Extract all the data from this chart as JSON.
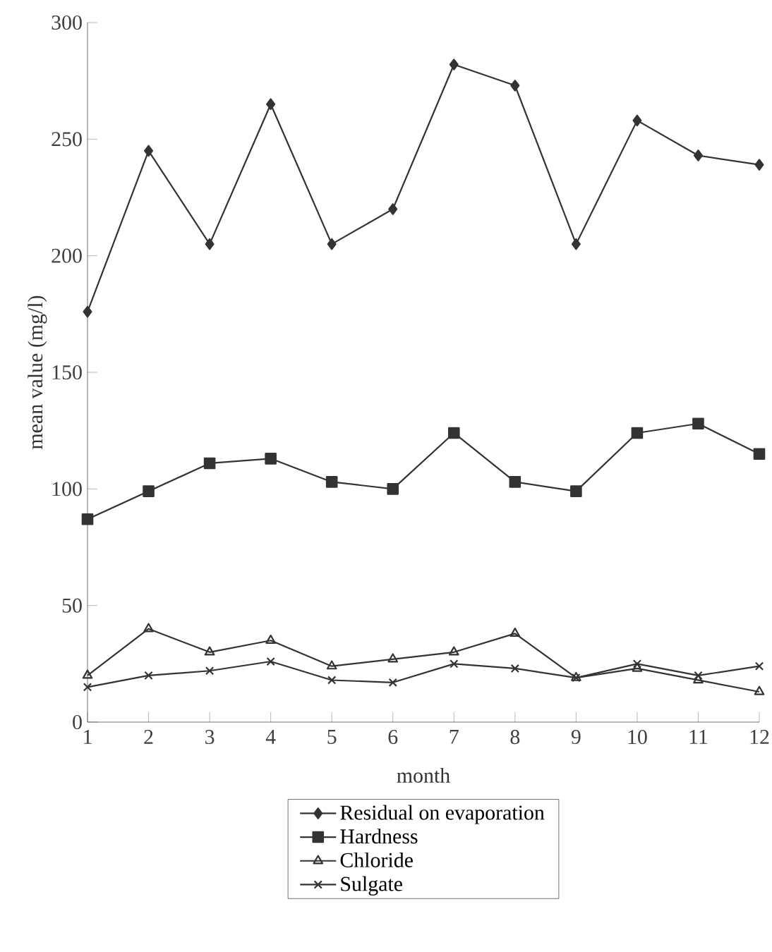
{
  "chart_data": {
    "type": "line",
    "xlabel": "month",
    "ylabel": "mean value (mg/l)",
    "x": [
      1,
      2,
      3,
      4,
      5,
      6,
      7,
      8,
      9,
      10,
      11,
      12
    ],
    "xlim": [
      1,
      12
    ],
    "xticks": [
      1,
      2,
      3,
      4,
      5,
      6,
      7,
      8,
      9,
      10,
      11,
      12
    ],
    "ylim": [
      0,
      300
    ],
    "yticks": [
      0,
      50,
      100,
      150,
      200,
      250,
      300
    ],
    "grid": false,
    "legend": "bottom",
    "line_style": "solid",
    "series": [
      {
        "name": "Residual on evaporation",
        "color": "#333333",
        "marker": "diamond",
        "values": [
          176,
          245,
          205,
          265,
          205,
          220,
          282,
          273,
          205,
          258,
          243,
          239
        ]
      },
      {
        "name": "Hardness",
        "color": "#333333",
        "marker": "square",
        "values": [
          87,
          99,
          111,
          113,
          103,
          100,
          124,
          103,
          99,
          124,
          128,
          115
        ]
      },
      {
        "name": "Chloride",
        "color": "#333333",
        "marker": "triangle",
        "values": [
          20,
          40,
          30,
          35,
          24,
          27,
          30,
          38,
          19,
          23,
          18,
          13
        ]
      },
      {
        "name": "Sulgate",
        "color": "#333333",
        "marker": "cross",
        "values": [
          15,
          20,
          22,
          26,
          18,
          17,
          25,
          23,
          19,
          25,
          20,
          24
        ]
      }
    ]
  }
}
